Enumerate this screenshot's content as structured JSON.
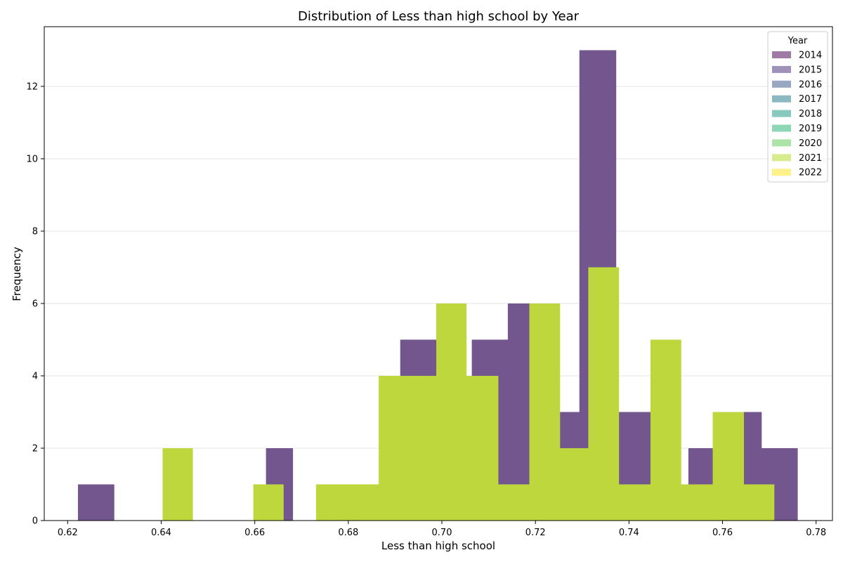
{
  "chart_data": {
    "type": "bar",
    "title": "Distribution of Less than high school by Year",
    "xlabel": "Less than high school",
    "ylabel": "Frequency",
    "xlim": [
      0.615,
      0.7835
    ],
    "ylim": [
      0,
      13.65
    ],
    "xticks": [
      0.62,
      0.64,
      0.66,
      0.68,
      0.7,
      0.72,
      0.74,
      0.76,
      0.78
    ],
    "xtick_labels": [
      "0.62",
      "0.64",
      "0.66",
      "0.68",
      "0.70",
      "0.72",
      "0.74",
      "0.76",
      "0.78"
    ],
    "yticks": [
      0,
      2,
      4,
      6,
      8,
      10,
      12
    ],
    "ytick_labels": [
      "0",
      "2",
      "4",
      "6",
      "8",
      "10",
      "12"
    ],
    "grid": "y",
    "legend": {
      "title": "Year",
      "placement": "top-right",
      "entries": [
        {
          "label": "2014",
          "color": "#9e7aa4"
        },
        {
          "label": "2015",
          "color": "#9f91b9"
        },
        {
          "label": "2016",
          "color": "#98a8c2"
        },
        {
          "label": "2017",
          "color": "#8bb8c1"
        },
        {
          "label": "2018",
          "color": "#88c9bd"
        },
        {
          "label": "2019",
          "color": "#8dd6b6"
        },
        {
          "label": "2020",
          "color": "#ace3a6"
        },
        {
          "label": "2021",
          "color": "#d6ec8f"
        },
        {
          "label": "2022",
          "color": "#fdf18a"
        }
      ]
    },
    "series": [
      {
        "name": "2014",
        "color": "#74568f",
        "bins": [
          {
            "x0": 0.6222,
            "x1": 0.6299,
            "value": 1
          },
          {
            "x0": 0.6624,
            "x1": 0.6681,
            "value": 2
          },
          {
            "x0": 0.6911,
            "x1": 0.6988,
            "value": 5
          },
          {
            "x0": 0.7064,
            "x1": 0.7141,
            "value": 5
          },
          {
            "x0": 0.7141,
            "x1": 0.7187,
            "value": 6
          },
          {
            "x0": 0.7249,
            "x1": 0.7294,
            "value": 3
          },
          {
            "x0": 0.7294,
            "x1": 0.7372,
            "value": 13
          },
          {
            "x0": 0.7372,
            "x1": 0.7446,
            "value": 3
          },
          {
            "x0": 0.7527,
            "x1": 0.7579,
            "value": 2
          },
          {
            "x0": 0.7645,
            "x1": 0.7683,
            "value": 3
          },
          {
            "x0": 0.7683,
            "x1": 0.776,
            "value": 2
          }
        ]
      },
      {
        "name": "2021",
        "color": "#bdd73c",
        "bins": [
          {
            "x0": 0.6403,
            "x1": 0.6467,
            "value": 2
          },
          {
            "x0": 0.6597,
            "x1": 0.6661,
            "value": 1
          },
          {
            "x0": 0.6731,
            "x1": 0.6865,
            "value": 1
          },
          {
            "x0": 0.6865,
            "x1": 0.6988,
            "value": 4
          },
          {
            "x0": 0.6988,
            "x1": 0.7052,
            "value": 6
          },
          {
            "x0": 0.7052,
            "x1": 0.712,
            "value": 4
          },
          {
            "x0": 0.712,
            "x1": 0.7187,
            "value": 1
          },
          {
            "x0": 0.7187,
            "x1": 0.7252,
            "value": 6
          },
          {
            "x0": 0.7252,
            "x1": 0.7313,
            "value": 2
          },
          {
            "x0": 0.7313,
            "x1": 0.7378,
            "value": 7
          },
          {
            "x0": 0.7378,
            "x1": 0.7446,
            "value": 1
          },
          {
            "x0": 0.7446,
            "x1": 0.7511,
            "value": 5
          },
          {
            "x0": 0.7511,
            "x1": 0.7579,
            "value": 1
          },
          {
            "x0": 0.7579,
            "x1": 0.7645,
            "value": 3
          },
          {
            "x0": 0.7645,
            "x1": 0.771,
            "value": 1
          }
        ]
      }
    ]
  }
}
